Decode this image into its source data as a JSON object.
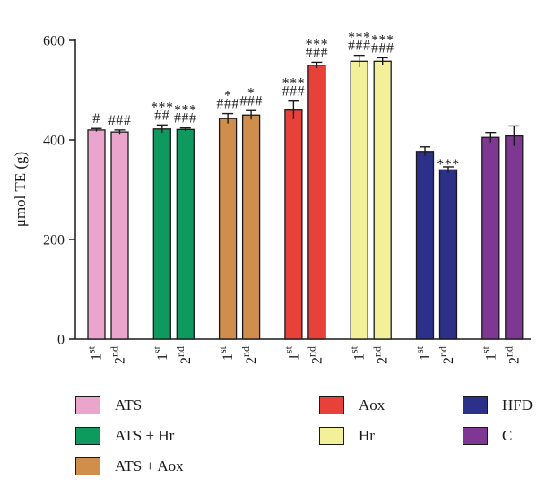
{
  "chart_data": {
    "type": "bar",
    "title": "",
    "ylabel": "μmol TE (g)",
    "ylim": [
      0,
      600
    ],
    "yticks": [
      0,
      200,
      400,
      600
    ],
    "grid": false,
    "legend_placement": "bottom",
    "series": [
      {
        "name": "ATS",
        "color": "#EBA5CC",
        "bars": [
          {
            "category": "1st",
            "value": 420,
            "error": 3,
            "annotation": [
              "#"
            ]
          },
          {
            "category": "2nd",
            "value": 416,
            "error": 4,
            "annotation": [
              "###"
            ]
          }
        ]
      },
      {
        "name": "ATS + Hr",
        "color": "#0E9A5F",
        "bars": [
          {
            "category": "1st",
            "value": 422,
            "error": 8,
            "annotation": [
              "***",
              "##"
            ]
          },
          {
            "category": "2nd",
            "value": 421,
            "error": 3,
            "annotation": [
              "***",
              "###"
            ]
          }
        ]
      },
      {
        "name": "ATS + Aox",
        "color": "#CF8E4C",
        "bars": [
          {
            "category": "1st",
            "value": 443,
            "error": 10,
            "annotation": [
              "*",
              "###"
            ]
          },
          {
            "category": "2nd",
            "value": 450,
            "error": 9,
            "annotation": [
              "*",
              "###"
            ]
          }
        ]
      },
      {
        "name": "Aox",
        "color": "#E8413A",
        "bars": [
          {
            "category": "1st",
            "value": 460,
            "error": 18,
            "annotation": [
              "***",
              "###"
            ]
          },
          {
            "category": "2nd",
            "value": 550,
            "error": 6,
            "annotation": [
              "***",
              "###"
            ]
          }
        ]
      },
      {
        "name": "Hr",
        "color": "#F3F09A",
        "bars": [
          {
            "category": "1st",
            "value": 558,
            "error": 12,
            "annotation": [
              "***",
              "###"
            ]
          },
          {
            "category": "2nd",
            "value": 558,
            "error": 7,
            "annotation": [
              "***",
              "###"
            ]
          }
        ]
      },
      {
        "name": "HFD",
        "color": "#2C3088",
        "bars": [
          {
            "category": "1st",
            "value": 377,
            "error": 9,
            "annotation": []
          },
          {
            "category": "2nd",
            "value": 340,
            "error": 6,
            "annotation": [
              "***"
            ]
          }
        ]
      },
      {
        "name": "C",
        "color": "#7E3894",
        "bars": [
          {
            "category": "1st",
            "value": 405,
            "error": 10,
            "annotation": []
          },
          {
            "category": "2nd",
            "value": 408,
            "error": 20,
            "annotation": []
          }
        ]
      }
    ],
    "category_labels": [
      {
        "num": "1",
        "sup": "st"
      },
      {
        "num": "2",
        "sup": "nd"
      }
    ],
    "legend": [
      {
        "label": "ATS",
        "color": "#EBA5CC"
      },
      {
        "label": "Aox",
        "color": "#E8413A"
      },
      {
        "label": "HFD",
        "color": "#2C3088"
      },
      {
        "label": "ATS + Hr",
        "color": "#0E9A5F"
      },
      {
        "label": "Hr",
        "color": "#F3F09A"
      },
      {
        "label": "C",
        "color": "#7E3894"
      },
      {
        "label": "ATS + Aox",
        "color": "#CF8E4C"
      }
    ]
  }
}
